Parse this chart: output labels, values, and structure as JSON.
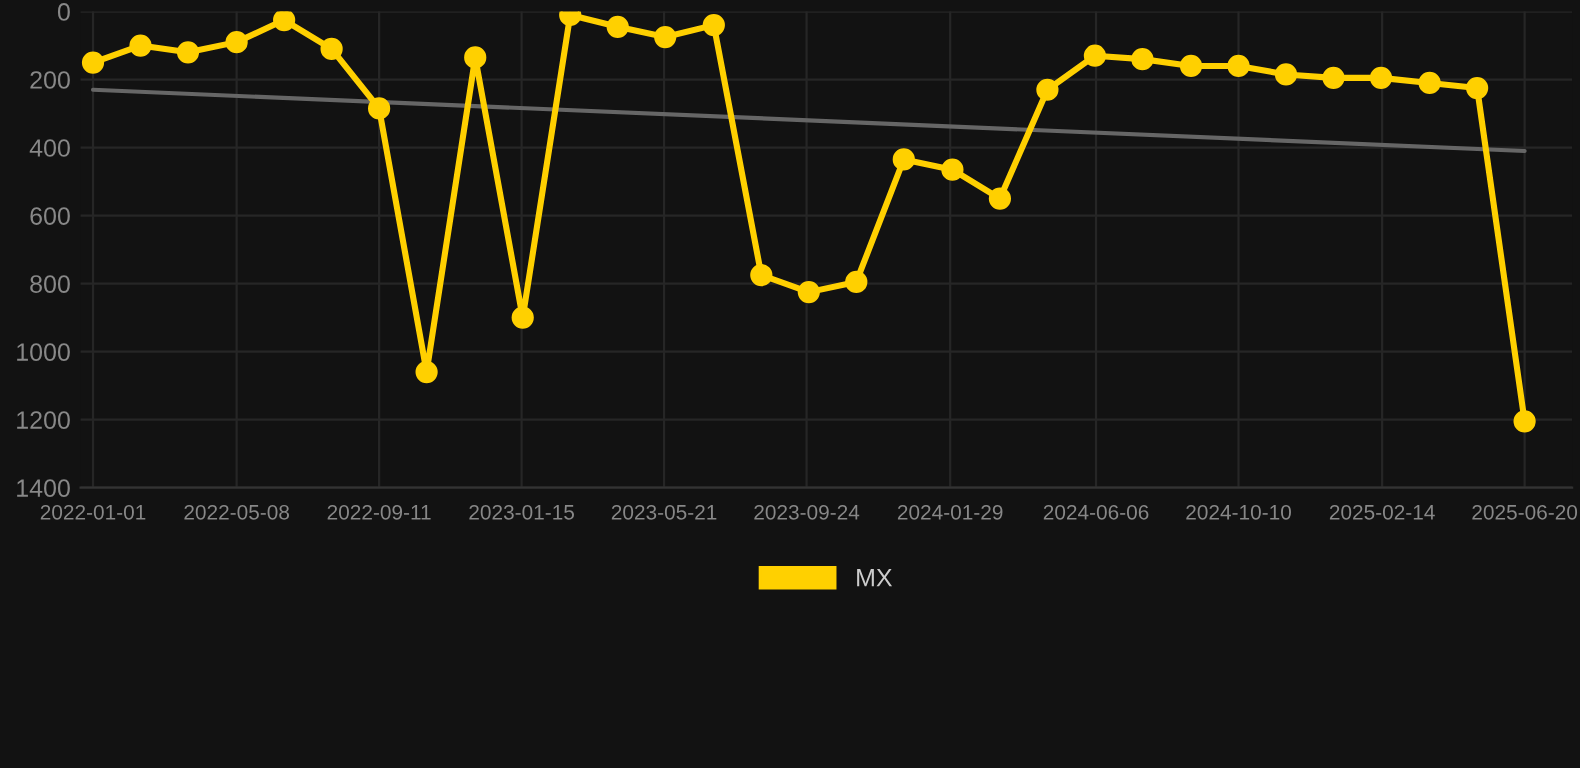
{
  "chart_data": {
    "type": "line",
    "legend": "bottom",
    "grid": true,
    "marker": "circle",
    "line_style": "solid",
    "x": [
      "2022-01-01",
      "2022-02-12",
      "2022-03-26",
      "2022-05-08",
      "2022-06-19",
      "2022-07-31",
      "2022-09-11",
      "2022-10-23",
      "2022-12-05",
      "2023-01-16",
      "2023-02-27",
      "2023-04-10",
      "2023-05-22",
      "2023-07-04",
      "2023-08-15",
      "2023-09-26",
      "2023-11-07",
      "2023-12-19",
      "2024-01-31",
      "2024-03-13",
      "2024-04-24",
      "2024-06-05",
      "2024-07-17",
      "2024-08-29",
      "2024-10-10",
      "2024-11-21",
      "2025-01-02",
      "2025-02-13",
      "2025-03-28",
      "2025-05-09",
      "2025-06-20"
    ],
    "series": [
      {
        "name": "MX",
        "color": "#ffd000",
        "values": [
          150,
          100,
          120,
          90,
          25,
          110,
          285,
          1060,
          135,
          900,
          10,
          45,
          75,
          40,
          775,
          825,
          795,
          435,
          465,
          550,
          230,
          130,
          140,
          160,
          160,
          185,
          195,
          195,
          210,
          225,
          1205
        ]
      },
      {
        "type": "line",
        "color": "#666666",
        "marker": "none",
        "x": [
          "2022-01-01",
          "2025-06-20"
        ],
        "values": [
          230,
          410
        ]
      }
    ],
    "xlim": [
      "2021-12-21",
      "2025-08-01"
    ],
    "xticks": [
      {
        "value": "2022-01-01",
        "label": "2022-01-01"
      },
      {
        "value": "2022-05-08",
        "label": "2022-05-08"
      },
      {
        "value": "2022-09-11",
        "label": "2022-09-11"
      },
      {
        "value": "2023-01-15",
        "label": "2023-01-15"
      },
      {
        "value": "2023-05-21",
        "label": "2023-05-21"
      },
      {
        "value": "2023-09-24",
        "label": "2023-09-24"
      },
      {
        "value": "2024-01-29",
        "label": "2024-01-29"
      },
      {
        "value": "2024-06-06",
        "label": "2024-06-06"
      },
      {
        "value": "2024-10-10",
        "label": "2024-10-10"
      },
      {
        "value": "2025-02-14",
        "label": "2025-02-14"
      },
      {
        "value": "2025-06-20",
        "label": "2025-06-20"
      }
    ],
    "ylim": [
      1400,
      0
    ],
    "yticks": [
      0,
      200,
      400,
      600,
      800,
      1000,
      1200,
      1400
    ]
  }
}
